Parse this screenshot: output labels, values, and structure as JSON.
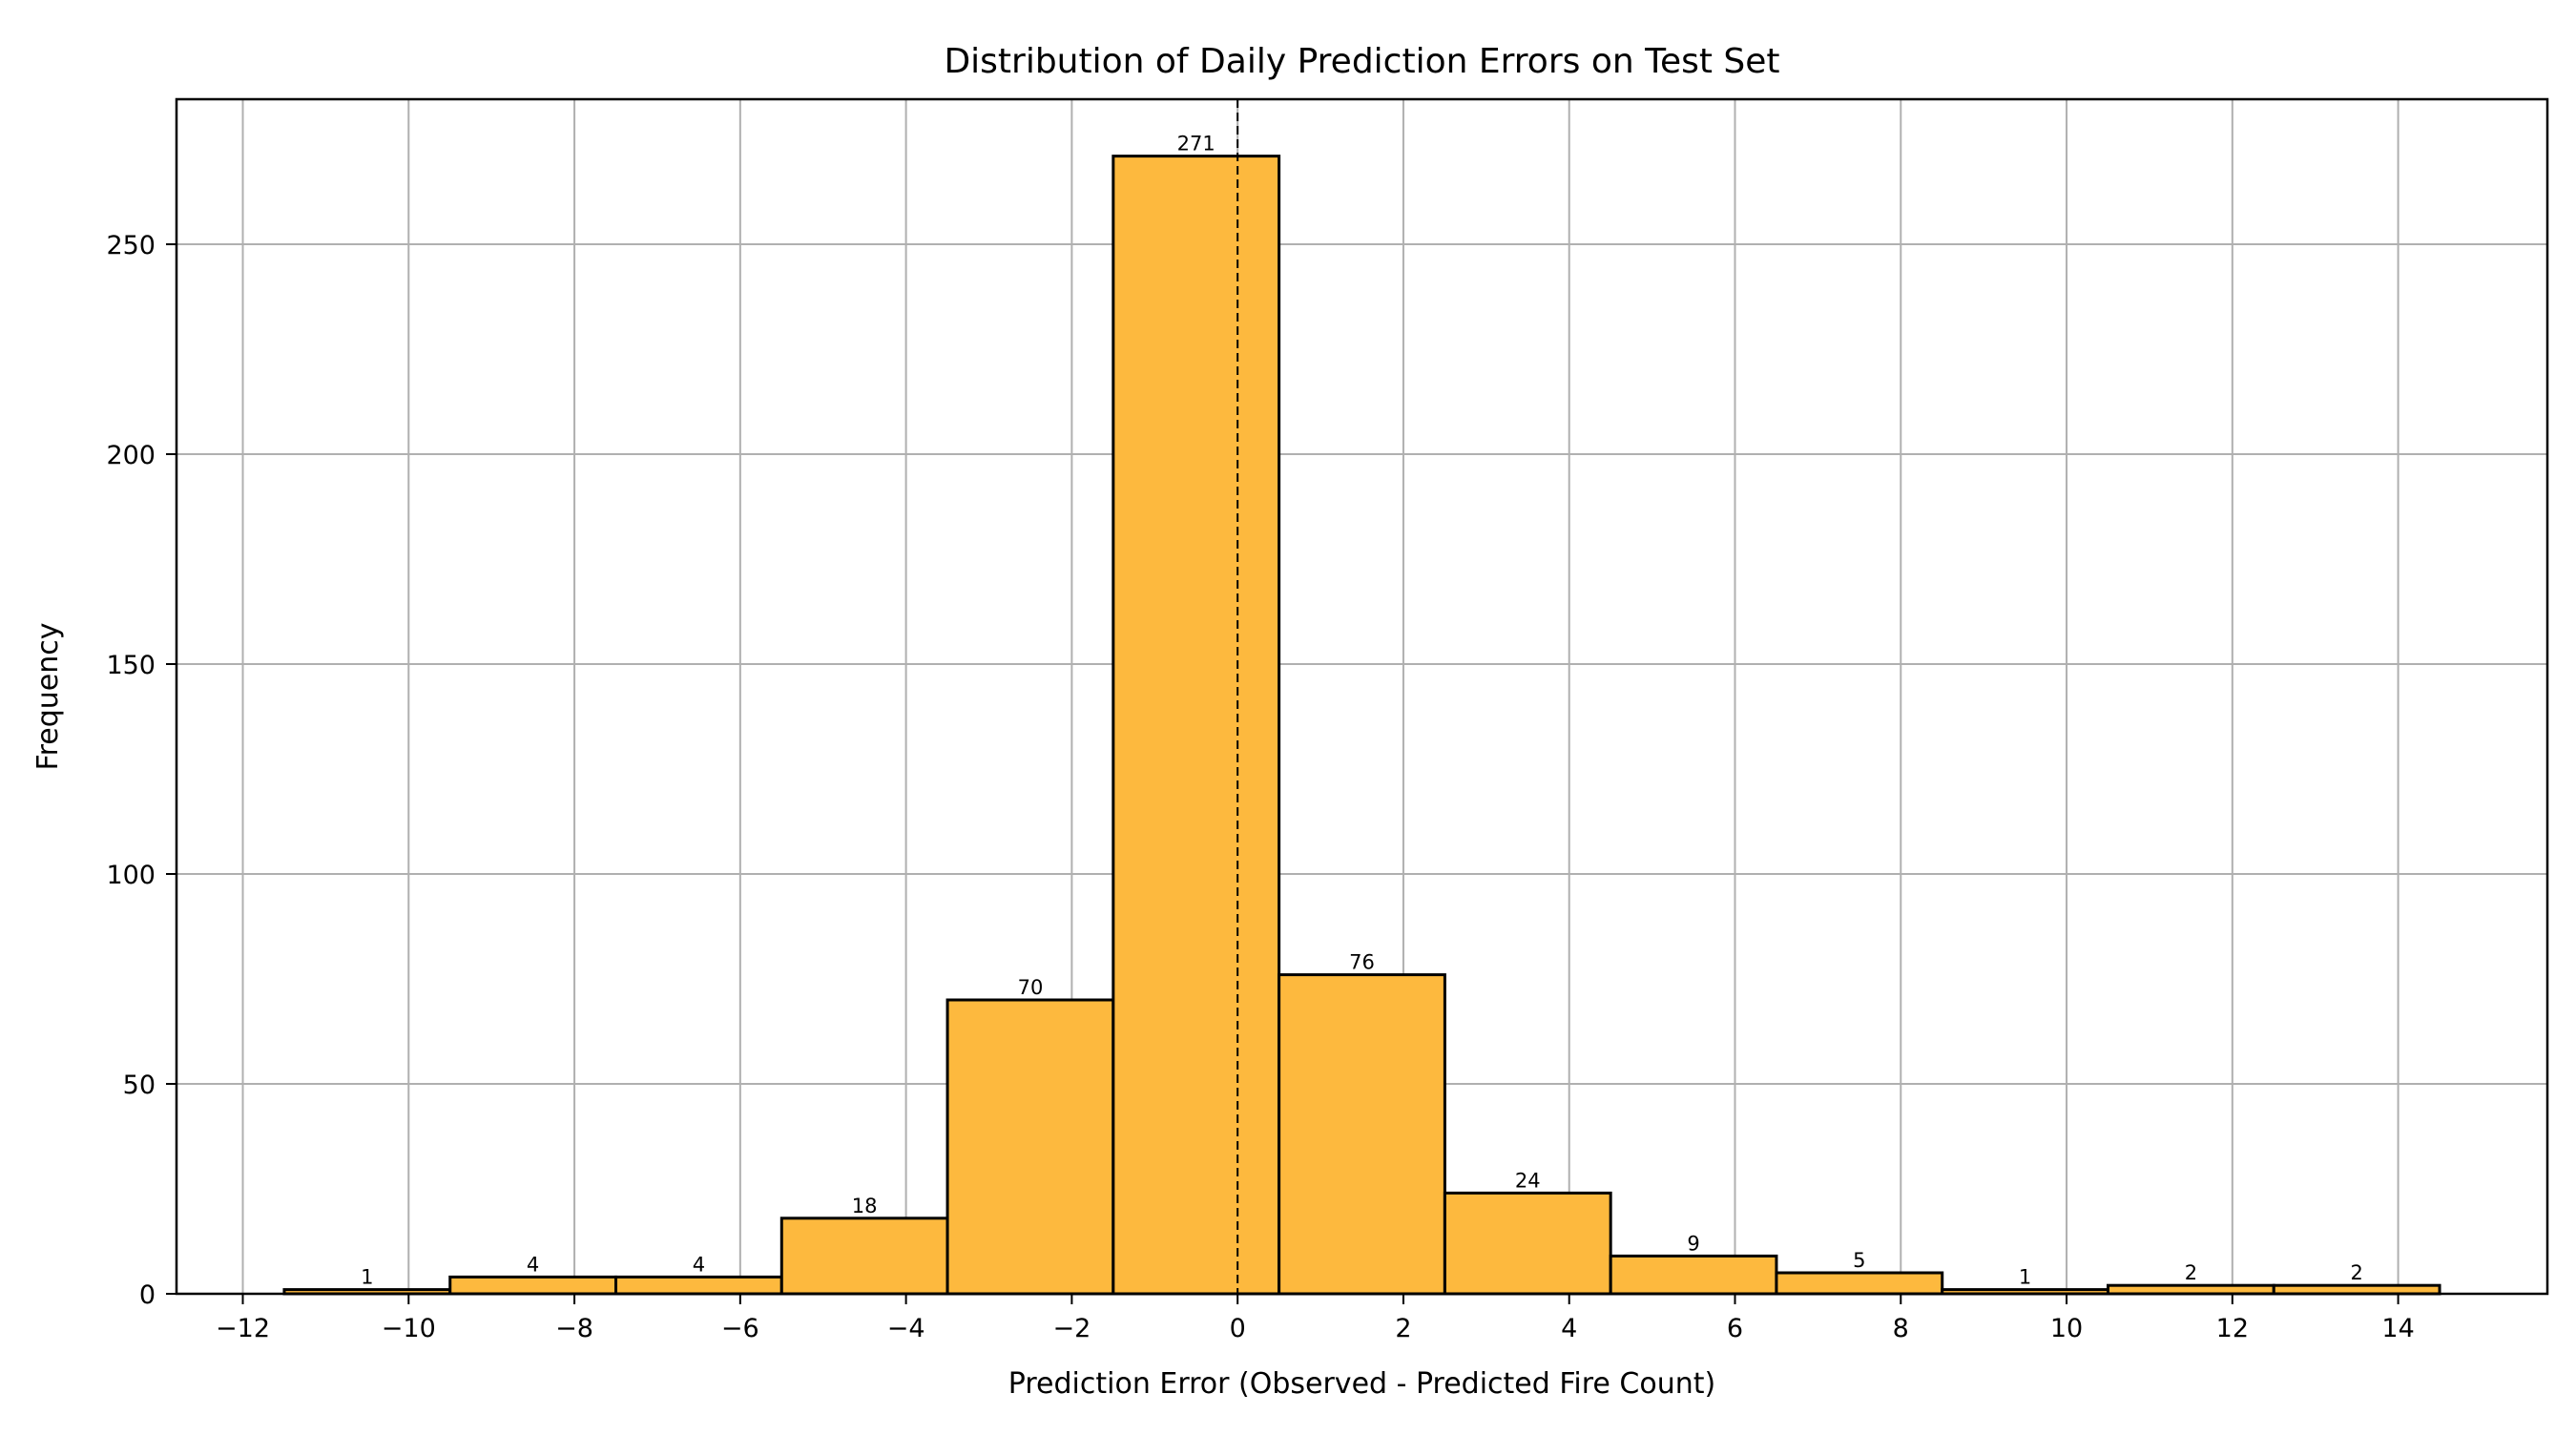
{
  "chart_data": {
    "type": "bar",
    "title": "Distribution of Daily Prediction Errors on Test Set",
    "xlabel": "Prediction Error (Observed - Predicted Fire Count)",
    "ylabel": "Frequency",
    "bin_edges": [
      -11.5,
      -9.5,
      -7.5,
      -5.5,
      -3.5,
      -1.5,
      0.5,
      2.5,
      4.5,
      6.5,
      8.5,
      10.5,
      12.5,
      14.5
    ],
    "values": [
      1,
      4,
      4,
      18,
      70,
      271,
      76,
      24,
      9,
      5,
      1,
      2,
      2
    ],
    "xlim": [
      -12.8,
      15.8
    ],
    "ylim": [
      0,
      284.55
    ],
    "xticks": [
      -12,
      -10,
      -8,
      -6,
      -4,
      -2,
      0,
      2,
      4,
      6,
      8,
      10,
      12,
      14
    ],
    "xtick_labels": [
      "−12",
      "−10",
      "−8",
      "−6",
      "−4",
      "−2",
      "0",
      "2",
      "4",
      "6",
      "8",
      "10",
      "12",
      "14"
    ],
    "yticks": [
      0,
      50,
      100,
      150,
      200,
      250
    ],
    "ytick_labels": [
      "0",
      "50",
      "100",
      "150",
      "200",
      "250"
    ],
    "reference_line": {
      "x": 0,
      "style": "dashed",
      "color": "#000000"
    },
    "grid": true,
    "bar_color": "#fdb93e",
    "edge_color": "#000000"
  }
}
